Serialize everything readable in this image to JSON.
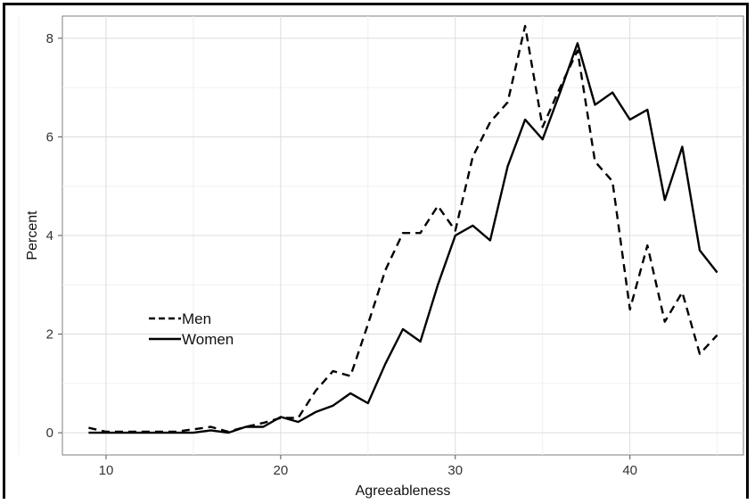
{
  "chart_data": {
    "type": "line",
    "xlabel": "Agreeableness",
    "ylabel": "Percent",
    "xlim": [
      7.5,
      46.5
    ],
    "ylim": [
      -0.45,
      8.45
    ],
    "x_ticks": [
      10,
      20,
      30,
      40
    ],
    "y_ticks": [
      0,
      2,
      4,
      6,
      8
    ],
    "grid": true,
    "legend": {
      "placement": "left-middle"
    },
    "x": [
      9,
      10,
      11,
      12,
      13,
      14,
      15,
      16,
      17,
      18,
      19,
      20,
      21,
      22,
      23,
      24,
      25,
      26,
      27,
      28,
      29,
      30,
      31,
      32,
      33,
      34,
      35,
      36,
      37,
      38,
      39,
      40,
      41,
      42,
      43,
      44,
      45
    ],
    "series": [
      {
        "name": "Men",
        "style": "dashed",
        "color": "#000000",
        "values": [
          0.1,
          0.02,
          0.02,
          0.02,
          0.02,
          0.02,
          0.07,
          0.12,
          0.02,
          0.12,
          0.2,
          0.3,
          0.3,
          0.85,
          1.25,
          1.15,
          2.2,
          3.3,
          4.05,
          4.05,
          4.6,
          4.1,
          5.6,
          6.3,
          6.7,
          8.25,
          6.2,
          7.0,
          7.75,
          5.5,
          5.1,
          2.5,
          3.8,
          2.25,
          2.85,
          1.6,
          1.98
        ]
      },
      {
        "name": "Women",
        "style": "solid",
        "color": "#000000",
        "values": [
          0.0,
          0.0,
          0.0,
          0.0,
          0.0,
          0.0,
          0.0,
          0.05,
          0.0,
          0.12,
          0.12,
          0.32,
          0.22,
          0.42,
          0.55,
          0.8,
          0.6,
          1.4,
          2.1,
          1.85,
          3.0,
          4.0,
          4.2,
          3.9,
          5.4,
          6.35,
          5.95,
          6.9,
          7.9,
          6.65,
          6.9,
          6.35,
          6.55,
          4.72,
          5.8,
          3.7,
          3.25
        ]
      }
    ]
  }
}
